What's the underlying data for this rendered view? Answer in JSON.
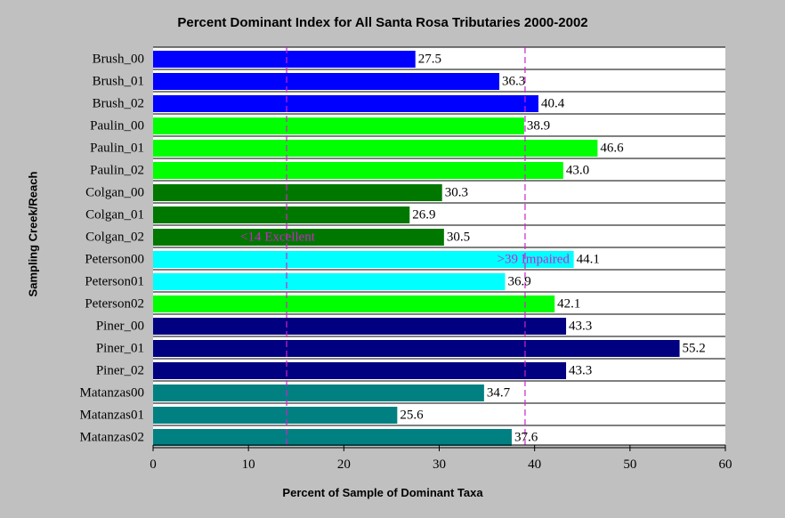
{
  "chart_data": {
    "type": "bar",
    "orientation": "horizontal",
    "title": "Percent Dominant Index for All Santa Rosa Tributaries 2000-2002",
    "xlabel": "Percent of Sample of Dominant Taxa",
    "ylabel": "Sampling Creek/Reach",
    "xlim": [
      0,
      60
    ],
    "xticks": [
      0,
      10,
      20,
      30,
      40,
      50,
      60
    ],
    "grid": "horizontal",
    "categories": [
      "Brush_00",
      "Brush_01",
      "Brush_02",
      "Paulin_00",
      "Paulin_01",
      "Paulin_02",
      "Colgan_00",
      "Colgan_01",
      "Colgan_02",
      "Peterson00",
      "Peterson01",
      "Peterson02",
      "Piner_00",
      "Piner_01",
      "Piner_02",
      "Matanzas00",
      "Matanzas01",
      "Matanzas02"
    ],
    "values": [
      27.5,
      36.3,
      40.4,
      38.9,
      46.6,
      43.0,
      30.3,
      26.9,
      30.5,
      44.1,
      36.9,
      42.1,
      43.3,
      55.2,
      43.3,
      34.7,
      25.6,
      37.6
    ],
    "value_labels": [
      "27.5",
      "36.3",
      "40.4",
      "38.9",
      "46.6",
      "43.0",
      "30.3",
      "26.9",
      "30.5",
      "44.1",
      "36.9",
      "42.1",
      "43.3",
      "55.2",
      "43.3",
      "34.7",
      "25.6",
      "37.6"
    ],
    "colors": [
      "#0000ff",
      "#0000ff",
      "#0000ff",
      "#00ff00",
      "#00ff00",
      "#00ff00",
      "#007800",
      "#007800",
      "#007800",
      "#00ffff",
      "#00ffff",
      "#00ff00",
      "#000080",
      "#000080",
      "#000080",
      "#008080",
      "#008080",
      "#008080"
    ],
    "reference_lines": [
      {
        "x": 14,
        "label": "<14 Excellent",
        "color": "#cc22cc"
      },
      {
        "x": 39,
        "label": ">39 Impaired",
        "color": "#cc22cc"
      }
    ]
  }
}
